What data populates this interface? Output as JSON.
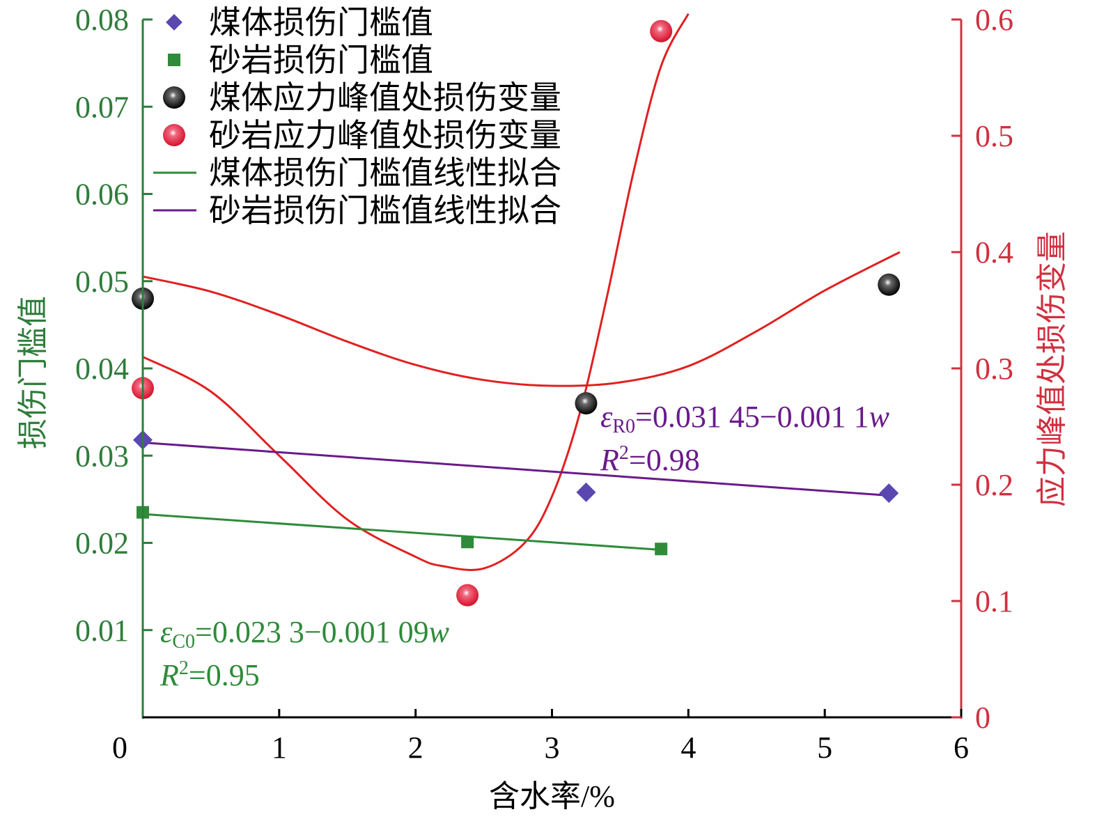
{
  "chart_data": {
    "type": "scatter",
    "xlabel": "含水率/%",
    "ylabel_left": "损伤门槛值",
    "ylabel_right": "应力峰值处损伤变量",
    "xlim": [
      0,
      6
    ],
    "ylim_left": [
      0,
      0.08
    ],
    "ylim_right": [
      0,
      0.6
    ],
    "x_ticks": [
      "0",
      "1",
      "2",
      "3",
      "4",
      "5",
      "6"
    ],
    "y_ticks_left": [
      "0.01",
      "0.02",
      "0.03",
      "0.04",
      "0.05",
      "0.06",
      "0.07",
      "0.08"
    ],
    "y_ticks_right": [
      "0",
      "0.1",
      "0.2",
      "0.3",
      "0.4",
      "0.5",
      "0.6"
    ],
    "grid": false,
    "legend_position": "top-left",
    "colors": {
      "left_axis": "#2e7d3a",
      "right_axis": "#d03040",
      "coal_marker": "#5a48b0",
      "sand_marker": "#2e8b3a",
      "coal_fit": "#2e8b3a",
      "sand_fit": "#6a1a8a",
      "curve": "#e02020"
    },
    "series": [
      {
        "name": "煤体损伤门槛值",
        "axis": "left",
        "marker": "diamond",
        "x": [
          0.0,
          3.25,
          5.47
        ],
        "y": [
          0.0318,
          0.0258,
          0.0257
        ]
      },
      {
        "name": "砂岩损伤门槛值",
        "axis": "left",
        "marker": "square",
        "x": [
          0.0,
          2.38,
          3.8
        ],
        "y": [
          0.0235,
          0.0201,
          0.0193
        ]
      },
      {
        "name": "煤体应力峰值处损伤变量",
        "axis": "right",
        "marker": "ball-black",
        "x": [
          0.0,
          3.25,
          5.47
        ],
        "y": [
          0.36,
          0.27,
          0.372
        ]
      },
      {
        "name": "砂岩应力峰值处损伤变量",
        "axis": "right",
        "marker": "ball-red",
        "x": [
          0.0,
          2.38,
          3.8
        ],
        "y": [
          0.283,
          0.105,
          0.59
        ]
      },
      {
        "name": "煤体损伤门槛值线性拟合",
        "axis": "left",
        "type": "line",
        "x": [
          0.0,
          3.8
        ],
        "y": [
          0.0233,
          0.0192
        ]
      },
      {
        "name": "砂岩损伤门槛值线性拟合",
        "axis": "left",
        "type": "line",
        "x": [
          0.0,
          5.5
        ],
        "y": [
          0.0315,
          0.0254
        ]
      }
    ],
    "fit_curves": [
      {
        "axis": "right",
        "x": [
          0.0,
          0.5,
          1.0,
          1.5,
          2.0,
          2.5,
          3.0,
          3.5,
          4.0,
          4.5,
          5.0,
          5.55
        ],
        "y": [
          0.379,
          0.366,
          0.346,
          0.323,
          0.303,
          0.29,
          0.285,
          0.288,
          0.302,
          0.332,
          0.367,
          0.4
        ]
      },
      {
        "axis": "right",
        "x": [
          0.0,
          0.5,
          1.0,
          1.5,
          2.0,
          2.2,
          2.5,
          2.8,
          3.0,
          3.2,
          3.4,
          3.6,
          3.8,
          4.0
        ],
        "y": [
          0.31,
          0.28,
          0.225,
          0.17,
          0.138,
          0.13,
          0.128,
          0.15,
          0.19,
          0.26,
          0.36,
          0.47,
          0.56,
          0.605
        ]
      }
    ],
    "annotations": [
      {
        "color": "sand_fit",
        "eq_prefix": "ε",
        "eq_sub": "R0",
        "eq_rest": "=0.031 45−0.001 1",
        "eq_var": "w",
        "r_label": "R",
        "r_sup": "2",
        "r_value": "=0.98"
      },
      {
        "color": "coal_fit",
        "eq_prefix": "ε",
        "eq_sub": "C0",
        "eq_rest": "=0.023 3−0.001 09",
        "eq_var": "w",
        "r_label": "R",
        "r_sup": "2",
        "r_value": "=0.95"
      }
    ]
  }
}
